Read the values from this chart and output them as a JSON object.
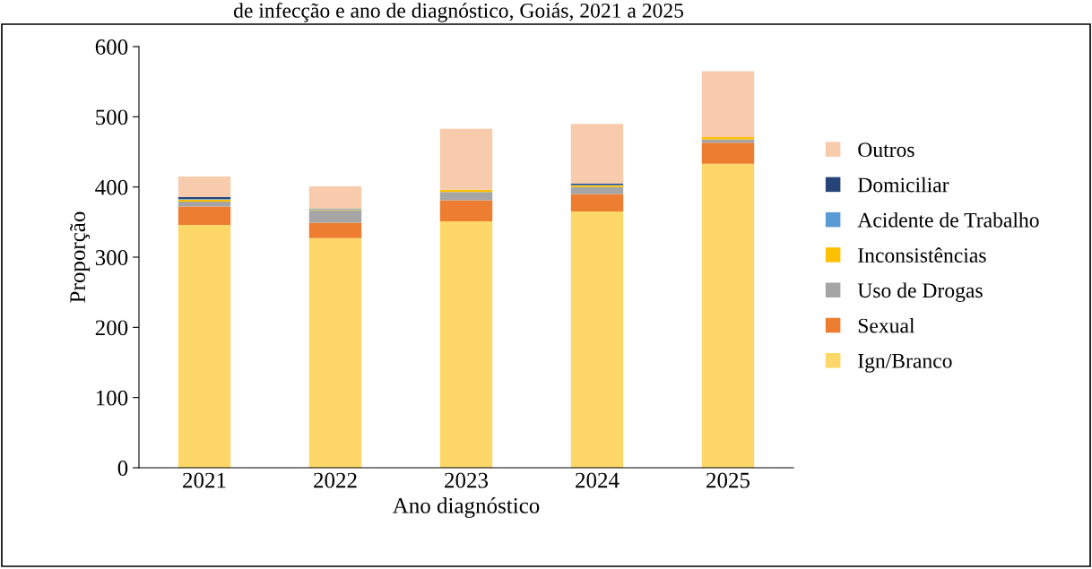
{
  "chart_data": {
    "type": "bar",
    "stacked": true,
    "title": "de infecção e ano de diagnóstico, Goiás, 2021 a 2025",
    "xlabel": "Ano diagnóstico",
    "ylabel": "Proporção",
    "categories": [
      "2021",
      "2022",
      "2023",
      "2024",
      "2025"
    ],
    "ylim": [
      0,
      600
    ],
    "yticks": [
      0,
      100,
      200,
      300,
      400,
      500,
      600
    ],
    "grid": false,
    "legend": "right",
    "series": [
      {
        "name": "Ign/Branco",
        "color": "#fdd868",
        "values": [
          346,
          327,
          351,
          365,
          433
        ]
      },
      {
        "name": "Sexual",
        "color": "#ed7d31",
        "values": [
          26,
          22,
          30,
          25,
          30
        ]
      },
      {
        "name": "Uso de Drogas",
        "color": "#a5a5a5",
        "values": [
          7,
          18,
          12,
          10,
          5
        ]
      },
      {
        "name": "Inconsistências",
        "color": "#ffc000",
        "values": [
          3,
          1,
          3,
          2,
          3
        ]
      },
      {
        "name": "Acidente de Trabalho",
        "color": "#5b9bd5",
        "values": [
          1,
          1,
          0,
          1,
          0
        ]
      },
      {
        "name": "Domiciliar",
        "color": "#264478",
        "values": [
          3,
          0,
          0,
          2,
          0
        ]
      },
      {
        "name": "Outros",
        "color": "#f8cbad",
        "values": [
          29,
          32,
          87,
          85,
          94
        ]
      }
    ]
  }
}
